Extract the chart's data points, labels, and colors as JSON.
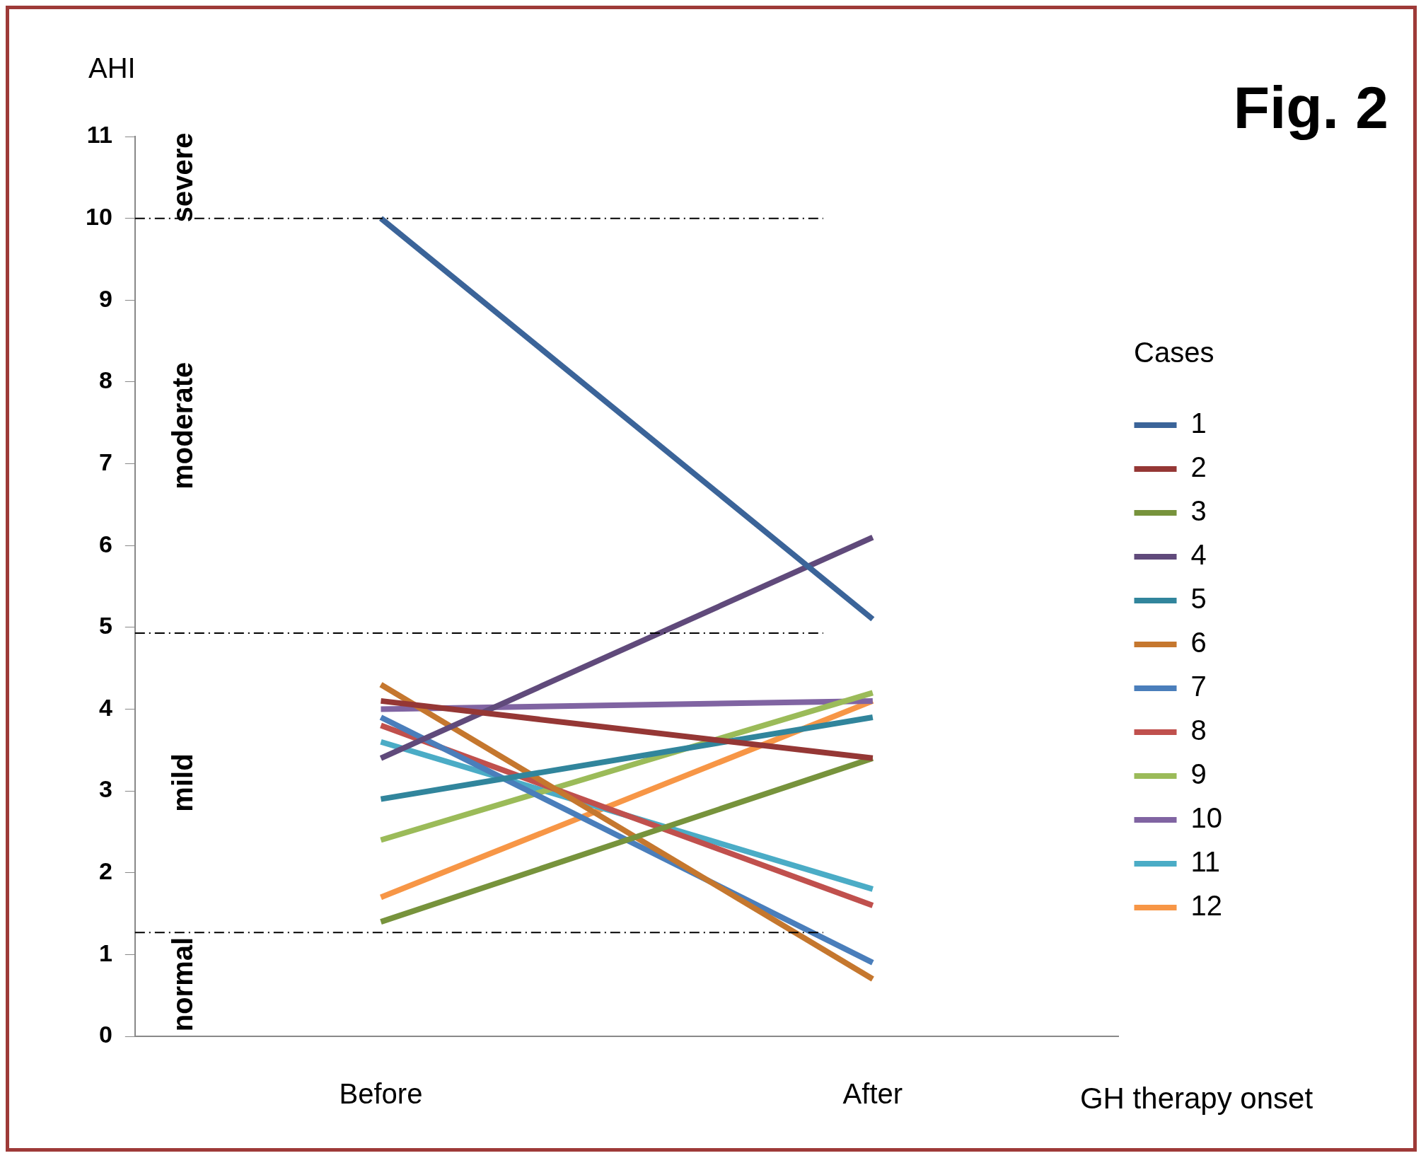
{
  "chart_data": {
    "type": "line",
    "title": "Fig. 2",
    "ylabel": "AHI",
    "legend_title": "Cases",
    "legend": "right",
    "grid": false,
    "marker": "none",
    "line_style": "solid",
    "categories": [
      "Before",
      "After"
    ],
    "ylim": [
      0,
      11
    ],
    "yticks": [
      0,
      1,
      2,
      3,
      4,
      5,
      6,
      7,
      8,
      9,
      10,
      11
    ],
    "series": [
      {
        "name": "1",
        "color": "#3b6499",
        "values": [
          10.0,
          5.1
        ]
      },
      {
        "name": "2",
        "color": "#953735",
        "values": [
          4.1,
          3.4
        ]
      },
      {
        "name": "3",
        "color": "#77933c",
        "values": [
          1.4,
          3.4
        ]
      },
      {
        "name": "4",
        "color": "#604a7b",
        "values": [
          3.4,
          6.1
        ]
      },
      {
        "name": "5",
        "color": "#31859c",
        "values": [
          2.9,
          3.9
        ]
      },
      {
        "name": "6",
        "color": "#c5772e",
        "values": [
          4.3,
          0.7
        ]
      },
      {
        "name": "7",
        "color": "#4a7ebb",
        "values": [
          3.9,
          0.9
        ]
      },
      {
        "name": "8",
        "color": "#c0504d",
        "values": [
          3.8,
          1.6
        ]
      },
      {
        "name": "9",
        "color": "#9bbb59",
        "values": [
          2.4,
          4.2
        ]
      },
      {
        "name": "10",
        "color": "#8064a2",
        "values": [
          4.0,
          4.1
        ]
      },
      {
        "name": "11",
        "color": "#4bacc6",
        "values": [
          3.6,
          1.8
        ]
      },
      {
        "name": "12",
        "color": "#f79646",
        "values": [
          1.7,
          4.1
        ]
      }
    ],
    "ref_lines": [
      {
        "axis": "y",
        "value": 10,
        "color": "#000000",
        "line_style": "dashed"
      },
      {
        "axis": "y",
        "value": 4.93,
        "color": "#000000",
        "line_style": "dashed"
      },
      {
        "axis": "y",
        "value": 1.27,
        "color": "#000000",
        "line_style": "dashed"
      }
    ],
    "annotations": [
      "severe",
      "moderate",
      "mild",
      "normal",
      "GH therapy onset"
    ]
  }
}
